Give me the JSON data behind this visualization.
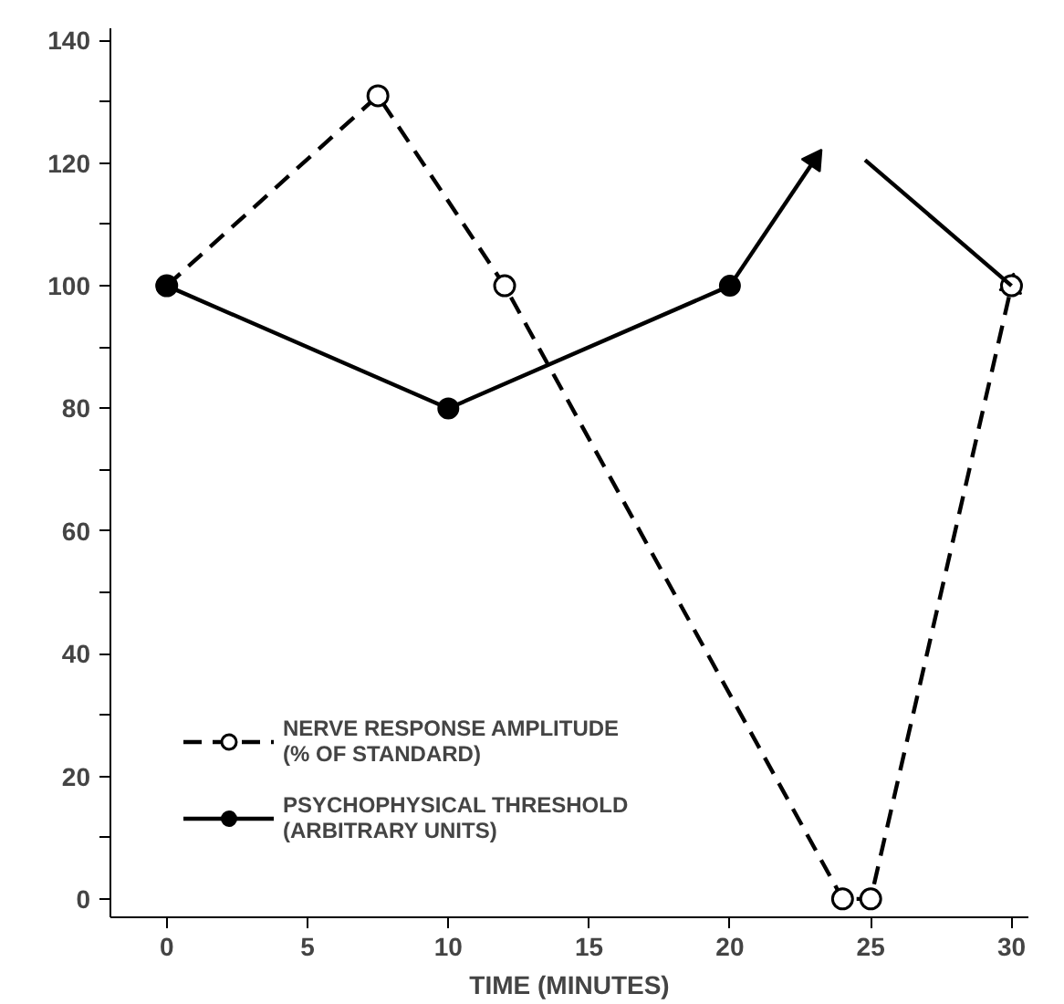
{
  "chart_data": {
    "type": "line",
    "xlabel": "TIME (MINUTES)",
    "xlim": [
      -2,
      30.6
    ],
    "ylim": [
      -3,
      142
    ],
    "xticks": [
      0,
      5,
      10,
      15,
      20,
      25,
      30
    ],
    "yticks": [
      0,
      {
        "value": 10,
        "label": null
      },
      20,
      {
        "value": 30,
        "label": null
      },
      40,
      {
        "value": 50,
        "label": null
      },
      60,
      {
        "value": 70,
        "label": null
      },
      80,
      {
        "value": 90,
        "label": null
      },
      100,
      {
        "value": 110,
        "label": null
      },
      120,
      {
        "value": 130,
        "label": null
      },
      140
    ],
    "grid": false,
    "legend": "bottom left",
    "series": [
      {
        "name": "NERVE RESPONSE AMPLITUDE\n(% OF STANDARD)",
        "color": "#000000",
        "x": [
          0,
          7.5,
          12,
          24,
          25,
          30
        ],
        "values": [
          100,
          131,
          100,
          0,
          0,
          100
        ],
        "marker": "circle_open",
        "line_style": "dashed"
      },
      {
        "name": "PSYCHOPHYSICAL THRESHOLD\n(ARBITRARY UNITS)",
        "color": "#000000",
        "x": [
          0,
          10,
          20
        ],
        "values": [
          100,
          80,
          100
        ],
        "marker": "circle",
        "line_style": "solid"
      },
      {
        "color": "#000000",
        "x": [
          20,
          23
        ],
        "values": [
          100,
          120.5
        ],
        "marker": "triangle",
        "line_style": "solid"
      },
      {
        "color": "#000000",
        "x": [
          24.8,
          30
        ],
        "values": [
          120.5,
          100
        ],
        "marker": "triangle",
        "line_style": "solid"
      }
    ]
  }
}
